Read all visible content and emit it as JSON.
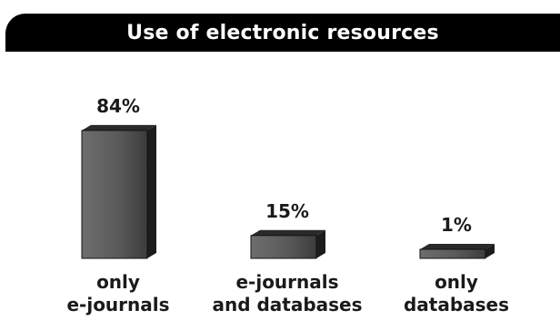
{
  "chart_data": {
    "type": "bar",
    "title": "Use of electronic resources",
    "categories": [
      [
        "only",
        "e-journals"
      ],
      [
        "e-journals",
        "and databases"
      ],
      [
        "only",
        "databases"
      ]
    ],
    "values": [
      84,
      15,
      1
    ],
    "value_labels": [
      "84%",
      "15%",
      "1%"
    ],
    "unit": "%",
    "ylim": [
      0,
      100
    ],
    "grid": false,
    "legend": "none",
    "colors": {
      "bar_front": "#5a5a5a",
      "bar_top": "#2a2a2a",
      "bar_side": "#1c1c1c",
      "title_bg": "#000000",
      "title_text": "#ffffff"
    }
  }
}
